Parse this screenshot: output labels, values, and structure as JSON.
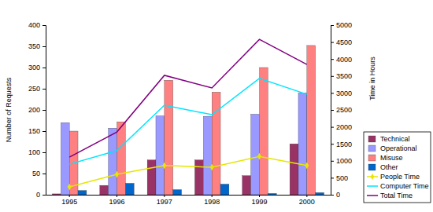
{
  "chart_data": {
    "type": "bar",
    "categories": [
      "1995",
      "1996",
      "1997",
      "1998",
      "1999",
      "2000"
    ],
    "y_label": "Number of Requests",
    "y2_label": "Time in Hours",
    "ylim": [
      0,
      400
    ],
    "yticks": [
      0,
      50,
      100,
      150,
      200,
      250,
      300,
      350,
      400
    ],
    "y2lim": [
      0,
      5000
    ],
    "y2ticks": [
      0,
      500,
      1000,
      1500,
      2000,
      2500,
      3000,
      3500,
      4000,
      4500,
      5000
    ],
    "legend": "right",
    "series": [
      {
        "name": "Technical",
        "type": "bar",
        "color": "#993366",
        "values": [
          2,
          22,
          82,
          82,
          45,
          120
        ]
      },
      {
        "name": "Operational",
        "type": "bar",
        "color": "#9999ff",
        "values": [
          170,
          157,
          186,
          185,
          190,
          240
        ]
      },
      {
        "name": "Misuse",
        "type": "bar",
        "color": "#ff8080",
        "values": [
          150,
          172,
          270,
          242,
          300,
          352
        ]
      },
      {
        "name": "Other",
        "type": "bar",
        "color": "#0066cc",
        "values": [
          10,
          27,
          12,
          25,
          3,
          5
        ]
      },
      {
        "name": "People Time",
        "type": "line",
        "axis": "y2",
        "color": "#e6e600",
        "marker": "diamond",
        "values": [
          230,
          600,
          860,
          810,
          1130,
          860
        ]
      },
      {
        "name": "Computer Time",
        "type": "line",
        "axis": "y2",
        "color": "#00e5ff",
        "values": [
          900,
          1300,
          2640,
          2360,
          3430,
          2960
        ]
      },
      {
        "name": "Total Time",
        "type": "line",
        "axis": "y2",
        "color": "#800080",
        "values": [
          1110,
          1850,
          3520,
          3150,
          4580,
          3840
        ]
      }
    ]
  }
}
